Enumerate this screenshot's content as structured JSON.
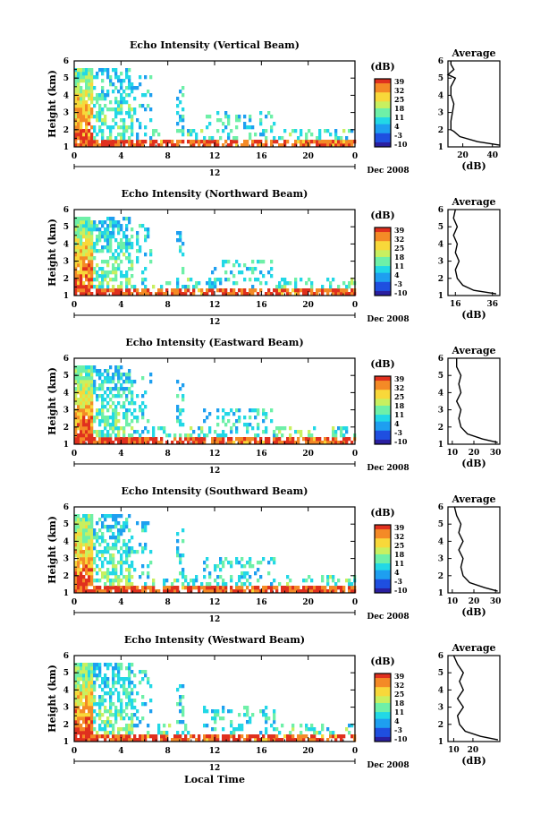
{
  "chart_data": [
    {
      "type": "heatmap",
      "title": "Echo Intensity (Vertical Beam)",
      "ylabel": "Height (km)",
      "xticks": [
        "0",
        "4",
        "8",
        "12",
        "16",
        "20",
        "0"
      ],
      "ylim": [
        1,
        6
      ],
      "yticks": [
        "1",
        "2",
        "3",
        "4",
        "5",
        "6"
      ],
      "day_label": "12",
      "date_label": "Dec 2008",
      "colorbar": {
        "unit": "(dB)",
        "levels": [
          "39",
          "32",
          "25",
          "18",
          "11",
          "4",
          "-3",
          "-10"
        ]
      },
      "average": {
        "title": "Average",
        "xlabel": "(dB)",
        "xticks": [
          "20",
          "40"
        ],
        "xlim": [
          10,
          45
        ],
        "heights": [
          1.1,
          1.3,
          1.6,
          1.9,
          2.0,
          2.5,
          3.0,
          3.5,
          4.0,
          4.5,
          5.0,
          5.2,
          5.5,
          5.8,
          6.0
        ],
        "values": [
          45,
          30,
          18,
          14,
          12,
          12,
          13,
          14,
          12,
          12,
          15,
          10,
          14,
          12,
          12
        ]
      }
    },
    {
      "type": "heatmap",
      "title": "Echo Intensity (Northward Beam)",
      "ylabel": "Height (km)",
      "xticks": [
        "0",
        "4",
        "8",
        "12",
        "16",
        "20",
        "0"
      ],
      "ylim": [
        1,
        6
      ],
      "yticks": [
        "1",
        "2",
        "3",
        "4",
        "5",
        "6"
      ],
      "day_label": "12",
      "date_label": "Dec 2008",
      "colorbar": {
        "unit": "(dB)",
        "levels": [
          "39",
          "32",
          "25",
          "18",
          "11",
          "4",
          "-3",
          "-10"
        ]
      },
      "average": {
        "title": "Average",
        "xlabel": "(dB)",
        "xticks": [
          "16",
          "36"
        ],
        "xlim": [
          12,
          40
        ],
        "heights": [
          1.1,
          1.3,
          1.6,
          2.0,
          2.5,
          3.0,
          3.5,
          4.0,
          4.5,
          5.0,
          5.5,
          6.0
        ],
        "values": [
          38,
          26,
          20,
          17,
          16,
          18,
          16,
          17,
          15,
          17,
          15,
          16
        ]
      }
    },
    {
      "type": "heatmap",
      "title": "Echo Intensity (Eastward Beam)",
      "ylabel": "Height (km)",
      "xticks": [
        "0",
        "4",
        "8",
        "12",
        "16",
        "20",
        "0"
      ],
      "ylim": [
        1,
        6
      ],
      "yticks": [
        "1",
        "2",
        "3",
        "4",
        "5",
        "6"
      ],
      "day_label": "12",
      "date_label": "Dec 2008",
      "colorbar": {
        "unit": "(dB)",
        "levels": [
          "39",
          "32",
          "25",
          "18",
          "11",
          "4",
          "-3",
          "-10"
        ]
      },
      "average": {
        "title": "Average",
        "xlabel": "(dB)",
        "xticks": [
          "10",
          "20",
          "30"
        ],
        "xlim": [
          8,
          32
        ],
        "heights": [
          1.1,
          1.3,
          1.6,
          2.0,
          2.5,
          3.0,
          3.5,
          4.0,
          4.5,
          5.0,
          5.5,
          6.0
        ],
        "values": [
          31,
          24,
          17,
          14,
          13,
          14,
          12,
          14,
          13,
          14,
          12,
          12
        ]
      }
    },
    {
      "type": "heatmap",
      "title": "Echo Intensity (Southward Beam)",
      "ylabel": "Height (km)",
      "xticks": [
        "0",
        "4",
        "8",
        "12",
        "16",
        "20",
        "0"
      ],
      "ylim": [
        1,
        6
      ],
      "yticks": [
        "1",
        "2",
        "3",
        "4",
        "5",
        "6"
      ],
      "day_label": "12",
      "date_label": "Dec 2008",
      "colorbar": {
        "unit": "(dB)",
        "levels": [
          "39",
          "32",
          "25",
          "18",
          "11",
          "4",
          "-3",
          "-10"
        ]
      },
      "average": {
        "title": "Average",
        "xlabel": "(dB)",
        "xticks": [
          "10",
          "20",
          "30"
        ],
        "xlim": [
          8,
          32
        ],
        "heights": [
          1.1,
          1.3,
          1.6,
          2.0,
          2.5,
          3.0,
          3.5,
          4.0,
          4.5,
          5.0,
          5.5,
          6.0
        ],
        "values": [
          31,
          25,
          18,
          15,
          14,
          15,
          13,
          15,
          13,
          14,
          12,
          11
        ]
      }
    },
    {
      "type": "heatmap",
      "title": "Echo Intensity (Westward Beam)",
      "ylabel": "Height (km)",
      "xticks": [
        "0",
        "4",
        "8",
        "12",
        "16",
        "20",
        "0"
      ],
      "ylim": [
        1,
        6
      ],
      "yticks": [
        "1",
        "2",
        "3",
        "4",
        "5",
        "6"
      ],
      "day_label": "12",
      "date_label": "Dec 2008",
      "xlabel": "Local Time",
      "colorbar": {
        "unit": "(dB)",
        "levels": [
          "39",
          "32",
          "25",
          "18",
          "11",
          "4",
          "-3",
          "-10"
        ]
      },
      "average": {
        "title": "Average",
        "xlabel": "(dB)",
        "xticks": [
          "10",
          "20"
        ],
        "xlim": [
          7,
          34
        ],
        "heights": [
          1.1,
          1.3,
          1.6,
          2.0,
          2.5,
          3.0,
          3.5,
          4.0,
          4.5,
          5.0,
          5.5,
          6.0
        ],
        "values": [
          33,
          24,
          16,
          13,
          12,
          15,
          12,
          15,
          13,
          15,
          12,
          10
        ]
      }
    }
  ]
}
